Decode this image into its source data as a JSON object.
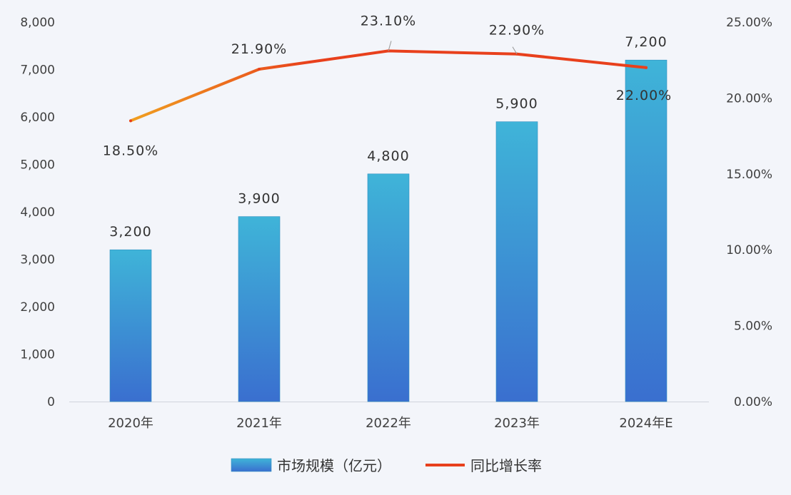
{
  "chart_data": {
    "type": "bar",
    "categories": [
      "2020年",
      "2021年",
      "2022年",
      "2023年",
      "2024年E"
    ],
    "series": [
      {
        "name": "市场规模（亿元）",
        "type": "bar",
        "axis": "left",
        "values": [
          3200,
          3900,
          4800,
          5900,
          7200
        ],
        "value_labels": [
          "3,200",
          "3,900",
          "4,800",
          "5,900",
          "7,200"
        ]
      },
      {
        "name": "同比增长率",
        "type": "line",
        "axis": "right",
        "values": [
          18.5,
          21.9,
          23.1,
          22.9,
          22.0
        ],
        "value_labels": [
          "18.50%",
          "21.90%",
          "23.10%",
          "22.90%",
          "22.00%"
        ]
      }
    ],
    "y_left": {
      "ylim": [
        0,
        8000
      ],
      "ticks": [
        "0",
        "1,000",
        "2,000",
        "3,000",
        "4,000",
        "5,000",
        "6,000",
        "7,000",
        "8,000"
      ]
    },
    "y_right": {
      "ylim": [
        0,
        25
      ],
      "ticks": [
        "0.00%",
        "5.00%",
        "10.00%",
        "15.00%",
        "20.00%",
        "25.00%"
      ]
    },
    "grid": false,
    "legend": "bottom",
    "colors": {
      "bar_top": "#3fb4d8",
      "bar_bottom": "#3a6fcf",
      "line_start": "#f0a020",
      "line_end": "#e8401c",
      "background": "#f3f5fa"
    }
  }
}
